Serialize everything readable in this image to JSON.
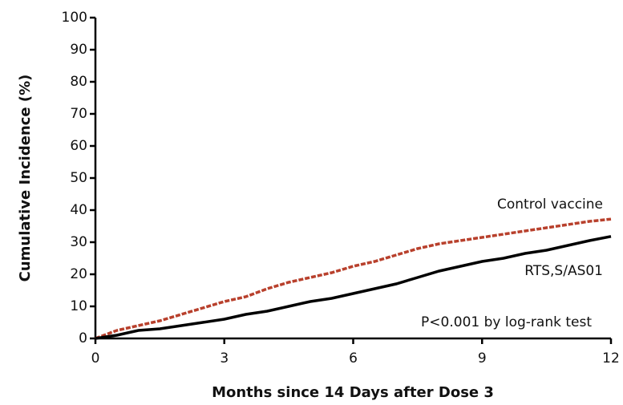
{
  "chart_data": {
    "type": "line",
    "x": [
      0,
      0.5,
      1,
      1.5,
      2,
      2.5,
      3,
      3.5,
      4,
      4.5,
      5,
      5.5,
      6,
      6.5,
      7,
      7.5,
      8,
      8.5,
      9,
      9.5,
      10,
      10.5,
      11,
      11.5,
      12
    ],
    "series": [
      {
        "name": "Control vaccine",
        "color": "#b8402c",
        "dashed": true,
        "values": [
          0,
          2.5,
          4,
          5.5,
          7.5,
          9.5,
          11.5,
          13,
          15.5,
          17.5,
          19,
          20.5,
          22.5,
          24,
          26,
          28,
          29.5,
          30.5,
          31.5,
          32.5,
          33.5,
          34.5,
          35.5,
          36.5,
          37.2
        ]
      },
      {
        "name": "RTS,S/AS01",
        "color": "#000000",
        "dashed": false,
        "values": [
          0,
          1,
          2.5,
          3,
          4,
          5,
          6,
          7.5,
          8.5,
          10,
          11.5,
          12.5,
          14,
          15.5,
          17,
          19,
          21,
          22.5,
          24,
          25,
          26.5,
          27.5,
          29,
          30.5,
          31.8
        ]
      }
    ],
    "annotation": "P<0.001 by log-rank test",
    "xlabel": "Months since 14 Days after Dose 3",
    "ylabel": "Cumulative Incidence (%)",
    "xlim": [
      0,
      12
    ],
    "xticks": [
      0,
      3,
      6,
      9,
      12
    ],
    "ylim": [
      0,
      100
    ],
    "yticks": [
      0,
      10,
      20,
      30,
      40,
      50,
      60,
      70,
      80,
      90,
      100
    ]
  }
}
